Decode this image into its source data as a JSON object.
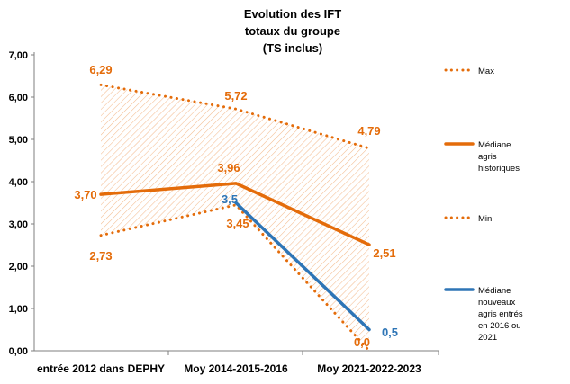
{
  "chart_data": {
    "type": "line",
    "title": "Evolution des IFT totaux du groupe (TS inclus)",
    "title_lines": [
      "Evolution des IFT",
      "totaux du groupe",
      "(TS inclus)"
    ],
    "categories": [
      "entrée 2012 dans DEPHY",
      "Moy 2014-2015-2016",
      "Moy 2021-2022-2023"
    ],
    "ylim": [
      0,
      7
    ],
    "ytick_values": [
      0,
      1,
      2,
      3,
      4,
      5,
      6,
      7
    ],
    "ytick_labels": [
      "0,00",
      "1,00",
      "2,00",
      "3,00",
      "4,00",
      "5,00",
      "6,00",
      "7,00"
    ],
    "grid": false,
    "legend_position": "right",
    "series": [
      {
        "name": "Max",
        "style": "dotted",
        "color": "#E46C0A",
        "values": [
          6.29,
          5.72,
          4.79
        ],
        "labels": [
          "6,29",
          "5,72",
          "4,79"
        ]
      },
      {
        "name": "Médiane agris historiques",
        "style": "solid",
        "color": "#E46C0A",
        "values": [
          3.7,
          3.96,
          2.51
        ],
        "labels": [
          "3,70",
          "3,96",
          "2,51"
        ]
      },
      {
        "name": "Min",
        "style": "dotted",
        "color": "#E46C0A",
        "values": [
          2.73,
          3.45,
          0.0
        ],
        "labels": [
          "2,73",
          "3,45",
          "0,0"
        ]
      },
      {
        "name": "Médiane nouveaux agris entrés en 2016 ou 2021",
        "style": "solid",
        "color": "#2E75B6",
        "values": [
          null,
          3.5,
          0.5
        ],
        "labels": [
          null,
          "3,5",
          "0,5"
        ]
      }
    ],
    "band": {
      "between": [
        "Min",
        "Max"
      ],
      "fill": "hatched",
      "color": "#E46C0A"
    },
    "legend": [
      {
        "lines": [
          "Max"
        ],
        "style": "dotted",
        "color": "#E46C0A"
      },
      {
        "lines": [
          "Médiane",
          "agris",
          "historiques"
        ],
        "style": "solid",
        "color": "#E46C0A"
      },
      {
        "lines": [
          "Min"
        ],
        "style": "dotted",
        "color": "#E46C0A"
      },
      {
        "lines": [
          "Médiane",
          "nouveaux",
          "agris entrés",
          "en 2016 ou",
          "2021"
        ],
        "style": "solid",
        "color": "#2E75B6"
      }
    ]
  }
}
